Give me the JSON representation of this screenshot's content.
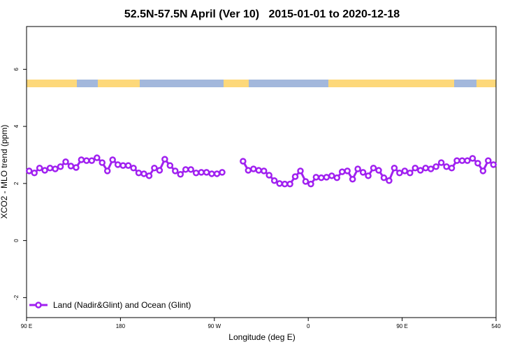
{
  "chart_data": {
    "type": "line",
    "title": "52.5N-57.5N April (Ver 10)   2015-01-01 to 2020-12-18",
    "x_label": "Longitude (deg E)",
    "y_label": "XCO2 - MLO trend (ppm)",
    "x": [
      92.5,
      97.5,
      102.5,
      107.5,
      112.5,
      117.5,
      122.5,
      127.5,
      132.5,
      137.5,
      142.5,
      147.5,
      152.5,
      157.5,
      162.5,
      167.5,
      172.5,
      177.5,
      182.5,
      187.5,
      192.5,
      197.5,
      202.5,
      207.5,
      212.5,
      217.5,
      222.5,
      227.5,
      232.5,
      237.5,
      242.5,
      247.5,
      252.5,
      257.5,
      262.5,
      267.5,
      272.5,
      277.5,
      282.5,
      287.5,
      292.5,
      297.5,
      302.5,
      307.5,
      312.5,
      317.5,
      322.5,
      327.5,
      332.5,
      337.5,
      342.5,
      347.5,
      352.5,
      357.5,
      362.5,
      367.5,
      372.5,
      377.5,
      382.5,
      387.5,
      392.5,
      397.5,
      402.5,
      407.5,
      412.5,
      417.5,
      422.5,
      427.5,
      432.5,
      437.5,
      442.5,
      447.5,
      452.5,
      457.5,
      462.5,
      467.5,
      472.5,
      477.5,
      482.5,
      487.5,
      492.5,
      497.5,
      502.5,
      507.5,
      512.5,
      517.5,
      522.5,
      527.5,
      532.5,
      537.5
    ],
    "series": [
      {
        "name": "Land (Nadir&Glint) and Ocean (Glint)",
        "color": "#a020f0",
        "values": [
          2.44,
          2.37,
          2.54,
          2.46,
          2.54,
          2.51,
          2.59,
          2.76,
          2.61,
          2.56,
          2.83,
          2.8,
          2.8,
          2.9,
          2.73,
          2.44,
          2.83,
          2.66,
          2.63,
          2.63,
          2.54,
          2.37,
          2.34,
          2.27,
          2.54,
          2.46,
          2.85,
          2.63,
          2.44,
          2.32,
          2.49,
          2.49,
          2.37,
          2.39,
          2.39,
          2.34,
          2.34,
          2.39,
          null,
          null,
          null,
          2.78,
          2.46,
          2.51,
          2.46,
          2.44,
          2.29,
          2.1,
          2.0,
          1.98,
          1.98,
          2.24,
          2.44,
          2.07,
          1.98,
          2.22,
          2.2,
          2.22,
          2.27,
          2.2,
          2.41,
          2.44,
          2.15,
          2.51,
          2.39,
          2.27,
          2.54,
          2.46,
          2.2,
          2.1,
          2.54,
          2.37,
          2.44,
          2.37,
          2.54,
          2.46,
          2.54,
          2.51,
          2.59,
          2.73,
          2.59,
          2.54,
          2.8,
          2.8,
          2.8,
          2.88,
          2.71,
          2.44,
          2.8,
          2.66
        ]
      }
    ],
    "xlim": [
      90,
      540
    ],
    "ylim": [
      -2.7,
      7.5
    ],
    "xticks": [
      {
        "value": 90,
        "label": "90 E"
      },
      180,
      {
        "value": 270,
        "label": "90 W"
      },
      {
        "value": 360,
        "label": "0"
      },
      {
        "value": 450,
        "label": "90 E"
      },
      540
    ],
    "yticks": [
      -2,
      0,
      2,
      4,
      6
    ],
    "legend": "bottom-left"
  }
}
